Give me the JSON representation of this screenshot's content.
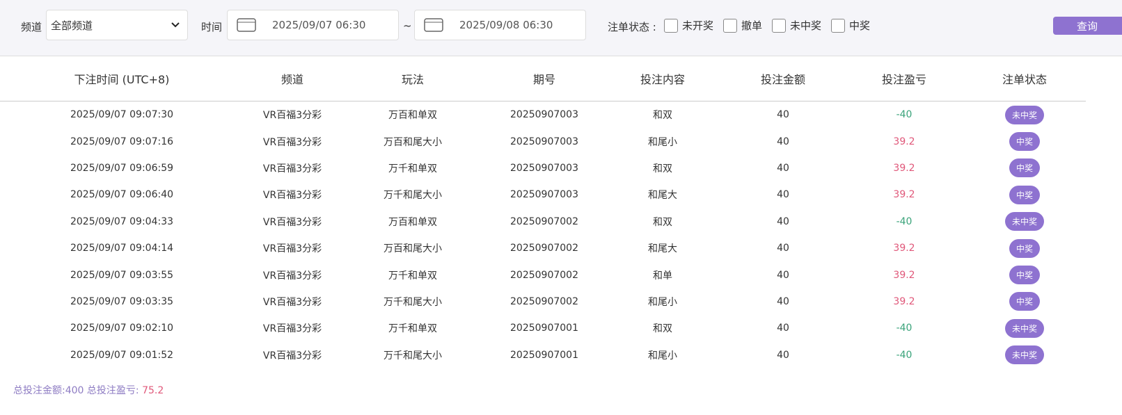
{
  "filters": {
    "channel_label": "频道",
    "channel_value": "全部频道",
    "time_label": "时间",
    "start": "2025/09/07 06:30",
    "separator": "~",
    "end": "2025/09/08 06:30",
    "status_label": "注单状态 :",
    "statuses": [
      "未开奖",
      "撤单",
      "未中奖",
      "中奖"
    ],
    "search_button": "查询"
  },
  "table": {
    "columns": [
      "下注时间 (UTC+8)",
      "频道",
      "玩法",
      "期号",
      "投注内容",
      "投注金额",
      "投注盈亏",
      "注单状态"
    ],
    "rows": [
      [
        "2025/09/07 09:07:30",
        "VR百福3分彩",
        "万百和单双",
        "20250907003",
        "和双",
        40,
        -40,
        "未中奖"
      ],
      [
        "2025/09/07 09:07:16",
        "VR百福3分彩",
        "万百和尾大小",
        "20250907003",
        "和尾小",
        40,
        39.2,
        "中奖"
      ],
      [
        "2025/09/07 09:06:59",
        "VR百福3分彩",
        "万千和单双",
        "20250907003",
        "和双",
        40,
        39.2,
        "中奖"
      ],
      [
        "2025/09/07 09:06:40",
        "VR百福3分彩",
        "万千和尾大小",
        "20250907003",
        "和尾大",
        40,
        39.2,
        "中奖"
      ],
      [
        "2025/09/07 09:04:33",
        "VR百福3分彩",
        "万百和单双",
        "20250907002",
        "和双",
        40,
        -40,
        "未中奖"
      ],
      [
        "2025/09/07 09:04:14",
        "VR百福3分彩",
        "万百和尾大小",
        "20250907002",
        "和尾大",
        40,
        39.2,
        "中奖"
      ],
      [
        "2025/09/07 09:03:55",
        "VR百福3分彩",
        "万千和单双",
        "20250907002",
        "和单",
        40,
        39.2,
        "中奖"
      ],
      [
        "2025/09/07 09:03:35",
        "VR百福3分彩",
        "万千和尾大小",
        "20250907002",
        "和尾小",
        40,
        39.2,
        "中奖"
      ],
      [
        "2025/09/07 09:02:10",
        "VR百福3分彩",
        "万千和单双",
        "20250907001",
        "和双",
        40,
        -40,
        "未中奖"
      ],
      [
        "2025/09/07 09:01:52",
        "VR百福3分彩",
        "万千和尾大小",
        "20250907001",
        "和尾小",
        40,
        -40,
        "未中奖"
      ]
    ]
  },
  "summary": {
    "total_amount_label": "总投注金额:",
    "total_amount": 400,
    "total_profit_label": "总投注盈亏:",
    "total_profit": 75.2
  }
}
